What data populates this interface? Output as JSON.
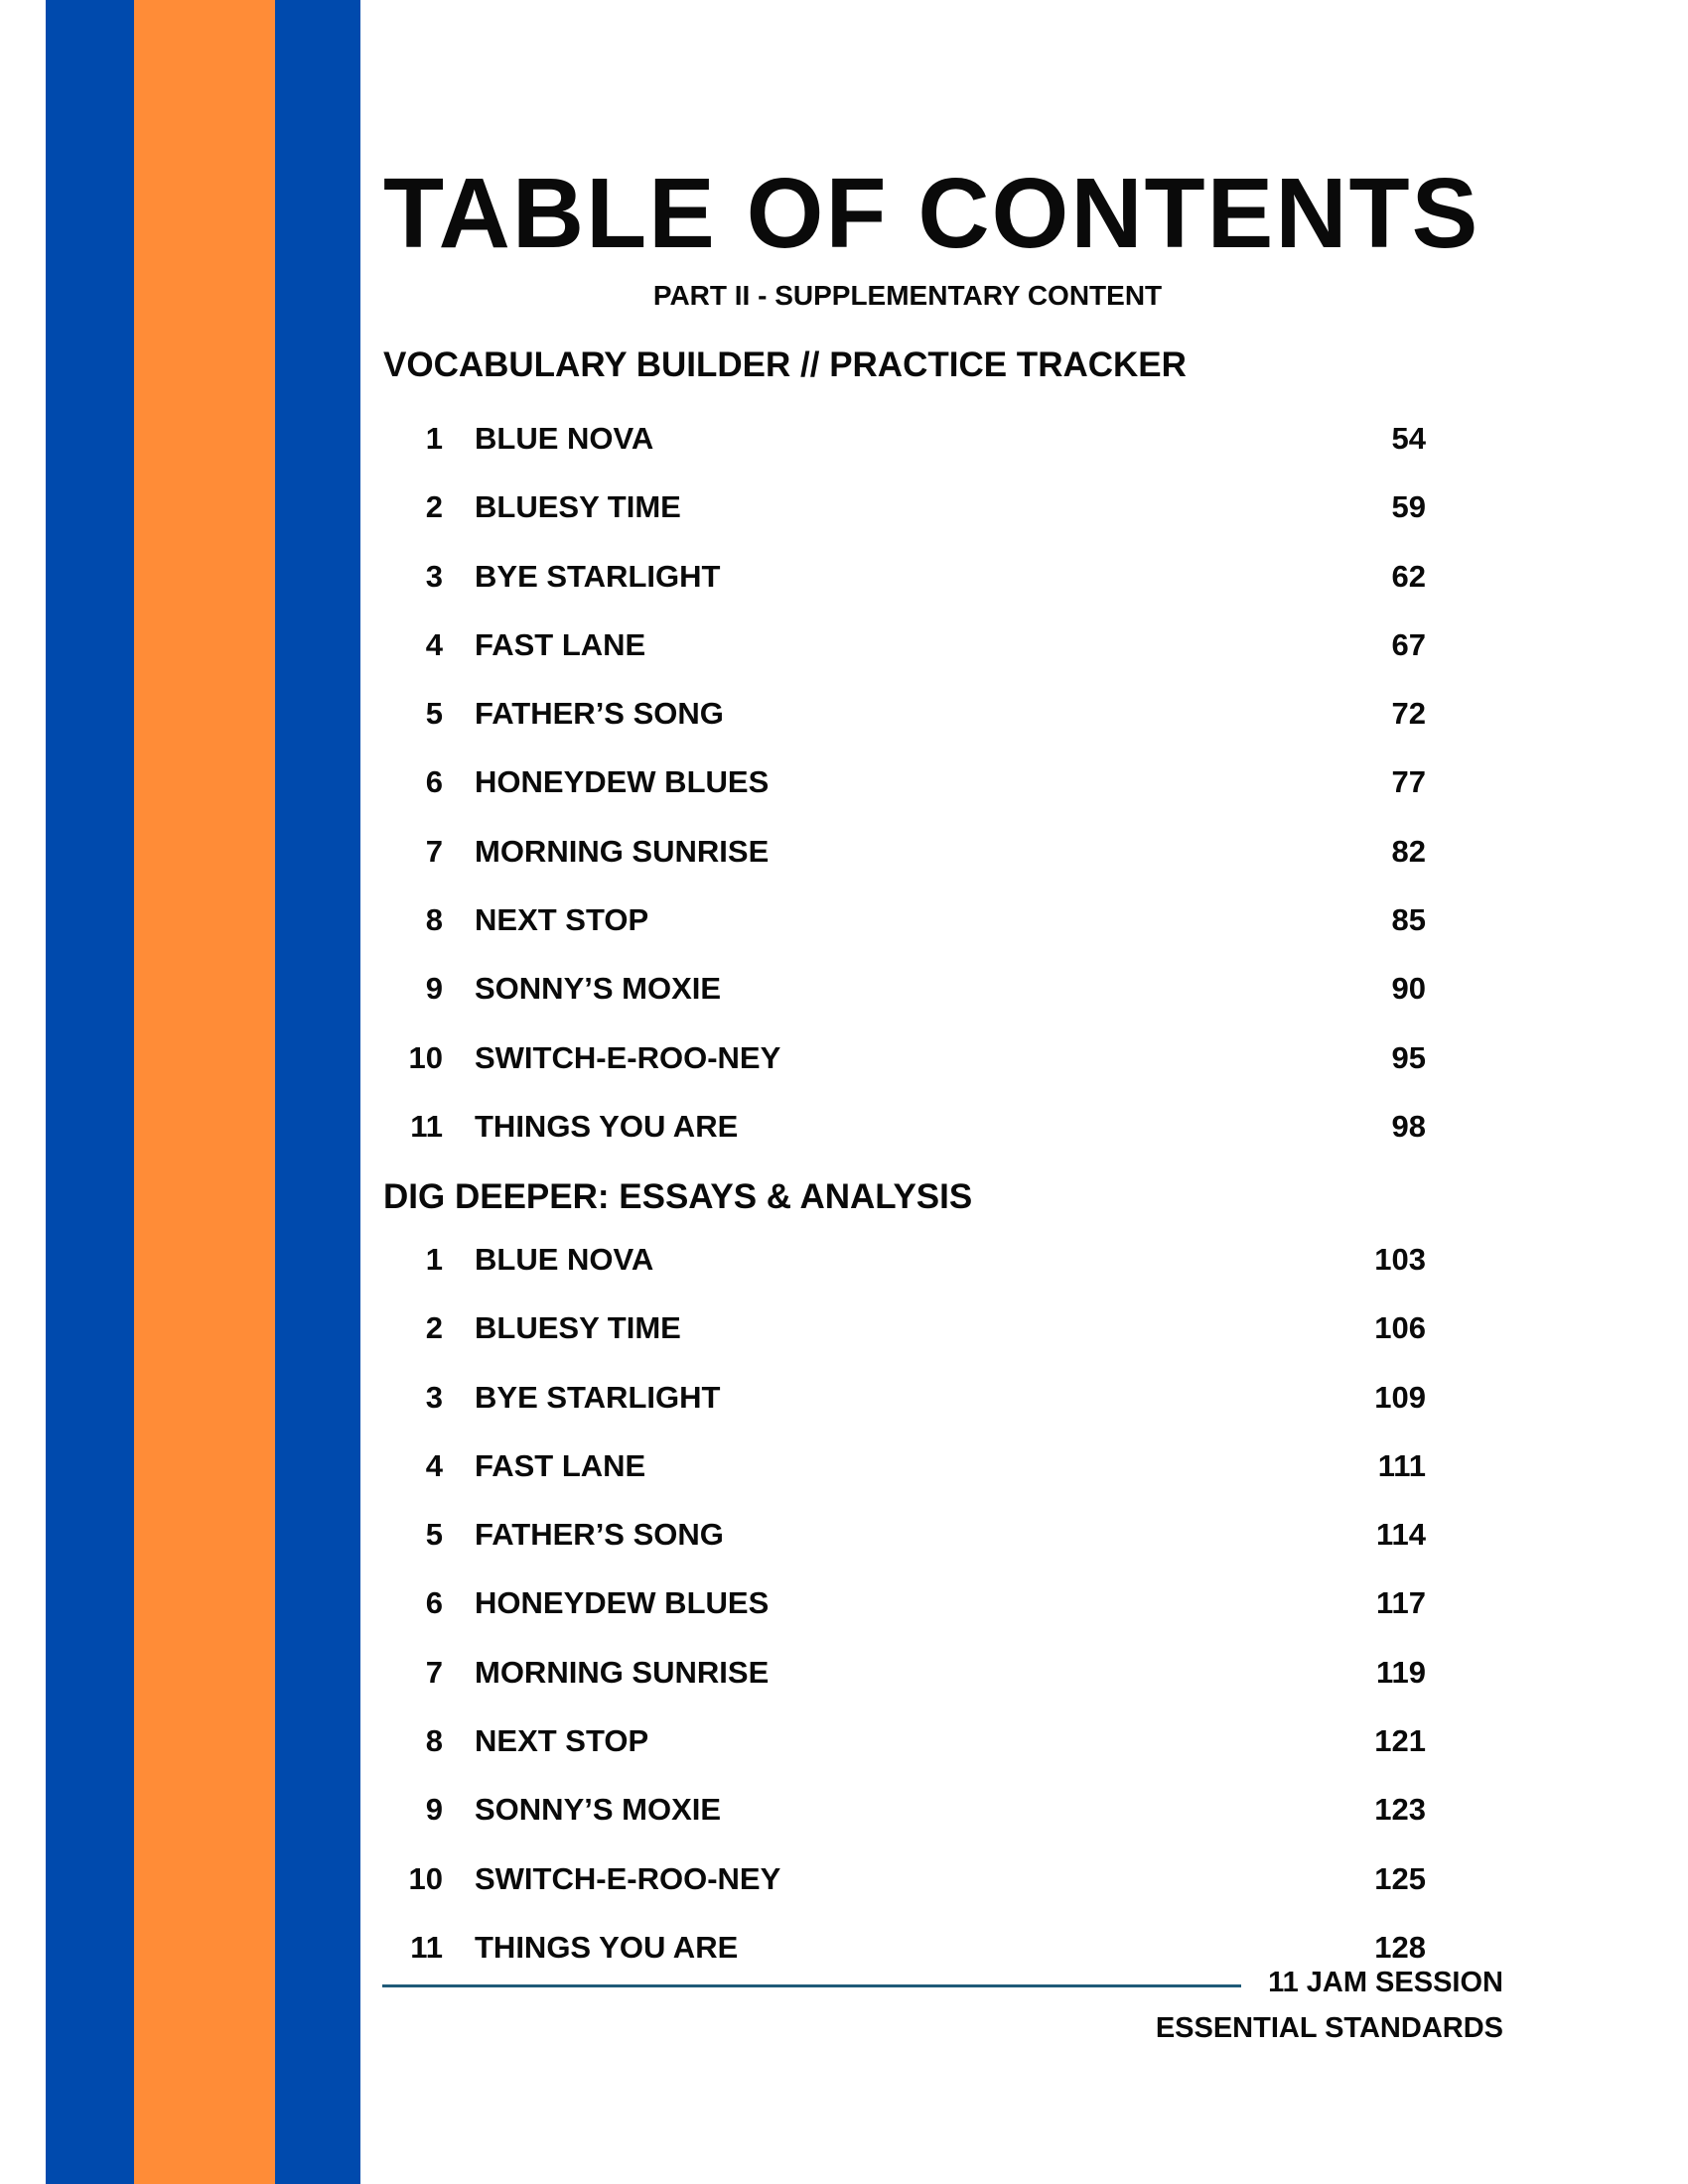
{
  "colors": {
    "stripe_blue": "#004aad",
    "stripe_orange": "#ff8c37",
    "rule": "#1f5a78"
  },
  "title": "TABLE OF CONTENTS",
  "subtitle": "PART II - SUPPLEMENTARY CONTENT",
  "sections": [
    {
      "heading": "VOCABULARY BUILDER // PRACTICE TRACKER",
      "items": [
        {
          "num": "1",
          "name": "BLUE NOVA",
          "page": "54"
        },
        {
          "num": "2",
          "name": "BLUESY TIME",
          "page": "59"
        },
        {
          "num": "3",
          "name": "BYE STARLIGHT",
          "page": "62"
        },
        {
          "num": "4",
          "name": "FAST LANE",
          "page": "67"
        },
        {
          "num": "5",
          "name": "FATHER’S SONG",
          "page": "72"
        },
        {
          "num": "6",
          "name": "HONEYDEW BLUES",
          "page": "77"
        },
        {
          "num": "7",
          "name": "MORNING SUNRISE",
          "page": "82"
        },
        {
          "num": "8",
          "name": "NEXT STOP",
          "page": "85"
        },
        {
          "num": "9",
          "name": "SONNY’S MOXIE",
          "page": "90"
        },
        {
          "num": "10",
          "name": "SWITCH-E-ROO-NEY",
          "page": "95"
        },
        {
          "num": "11",
          "name": "THINGS YOU ARE",
          "page": "98"
        }
      ]
    },
    {
      "heading": "DIG DEEPER: ESSAYS & ANALYSIS",
      "items": [
        {
          "num": "1",
          "name": "BLUE NOVA",
          "page": "103"
        },
        {
          "num": "2",
          "name": "BLUESY TIME",
          "page": "106"
        },
        {
          "num": "3",
          "name": "BYE STARLIGHT",
          "page": "109"
        },
        {
          "num": "4",
          "name": "FAST LANE",
          "page": "111"
        },
        {
          "num": "5",
          "name": "FATHER’S SONG",
          "page": "114"
        },
        {
          "num": "6",
          "name": "HONEYDEW BLUES",
          "page": "117"
        },
        {
          "num": "7",
          "name": "MORNING SUNRISE",
          "page": "119"
        },
        {
          "num": "8",
          "name": "NEXT STOP",
          "page": "121"
        },
        {
          "num": "9",
          "name": "SONNY’S MOXIE",
          "page": "123"
        },
        {
          "num": "10",
          "name": "SWITCH-E-ROO-NEY",
          "page": "125"
        },
        {
          "num": "11",
          "name": "THINGS YOU ARE",
          "page": "128"
        }
      ]
    }
  ],
  "footer": {
    "line1": "11 JAM SESSION",
    "line2": "ESSENTIAL STANDARDS"
  }
}
